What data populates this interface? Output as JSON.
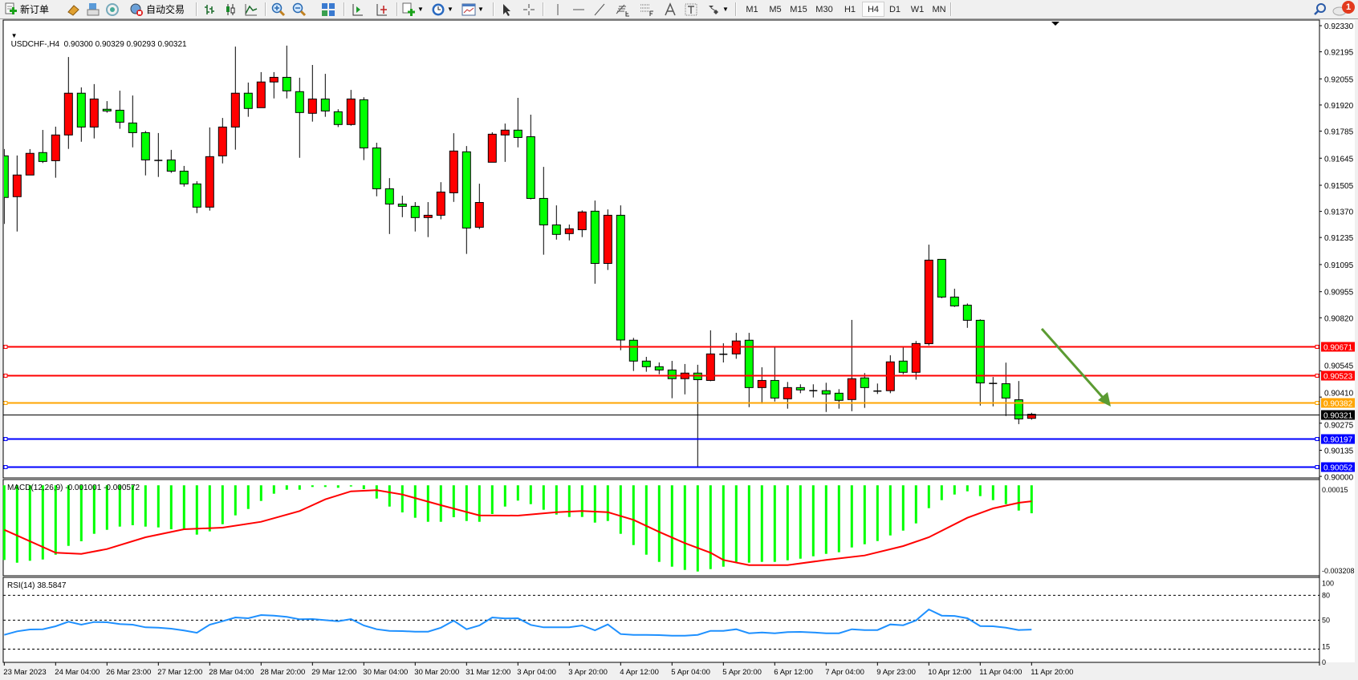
{
  "toolbar": {
    "new_order_label": "新订单",
    "auto_trade_label": "自动交易",
    "timeframes": [
      "M1",
      "M5",
      "M15",
      "M30",
      "H1",
      "H4",
      "D1",
      "W1",
      "MN"
    ],
    "active_timeframe": "H4",
    "notification_count": "1",
    "icons": [
      "new-order-icon",
      "gold-icon",
      "print-icon",
      "signal-icon",
      "auto-trade-icon",
      "bar-chart-icon",
      "candlestick-icon",
      "line-chart-icon",
      "zoom-in-icon",
      "zoom-out-icon",
      "tile-windows-icon",
      "chart-shift-icon",
      "auto-scroll-icon",
      "new-chart-icon",
      "periods-clock-icon",
      "templates-icon",
      "cursor-icon",
      "crosshair-icon",
      "vertical-line-icon",
      "horizontal-line-icon",
      "trendline-icon",
      "fibo-expansion-icon",
      "fibo-retracement-icon",
      "text-icon",
      "text-label-icon",
      "arrows-icon",
      "search-icon",
      "notification-icon"
    ]
  },
  "main_chart": {
    "header": "USDCHF-,H4  0.90300 0.90329 0.90293 0.90321",
    "symbol": "USDCHF-",
    "timeframe": "H4",
    "ohlc": {
      "open": "0.90300",
      "high": "0.90329",
      "low": "0.90293",
      "close": "0.90321"
    }
  },
  "macd_label": "MACD(12,26,9) -0.001001 -0.000572",
  "rsi_label": "RSI(14) 38.5847",
  "chart_data": [
    {
      "type": "candlestick",
      "title": "USDCHF-,H4",
      "ylim": [
        0.89992,
        0.92355
      ],
      "y_tick_labels": [
        "0.92330",
        "0.92195",
        "0.92055",
        "0.91920",
        "0.91785",
        "0.91645",
        "0.91505",
        "0.91370",
        "0.91235",
        "0.91095",
        "0.90955",
        "0.90820",
        "0.90545",
        "0.90410",
        "0.90275",
        "0.90135",
        "0.90000"
      ],
      "x_tick_labels": [
        "23 Mar 2023",
        "24 Mar 04:00",
        "26 Mar 23:00",
        "27 Mar 12:00",
        "28 Mar 04:00",
        "28 Mar 20:00",
        "29 Mar 12:00",
        "30 Mar 04:00",
        "30 Mar 20:00",
        "31 Mar 12:00",
        "3 Apr 04:00",
        "3 Apr 20:00",
        "4 Apr 12:00",
        "5 Apr 04:00",
        "5 Apr 20:00",
        "6 Apr 12:00",
        "7 Apr 04:00",
        "9 Apr 23:00",
        "10 Apr 12:00",
        "11 Apr 04:00",
        "11 Apr 20:00"
      ],
      "x_tick_every_bars": 4,
      "up_color": "#ff0000",
      "down_color": "#00ff00",
      "ohlc_fields": [
        "open",
        "high",
        "low",
        "close"
      ],
      "candles": [
        [
          0.91657,
          0.91692,
          0.91305,
          0.91442
        ],
        [
          0.91446,
          0.91659,
          0.91266,
          0.91558
        ],
        [
          0.91558,
          0.91692,
          0.91558,
          0.9167
        ],
        [
          0.91674,
          0.91791,
          0.9162,
          0.91628
        ],
        [
          0.91632,
          0.91808,
          0.91544,
          0.91765
        ],
        [
          0.91765,
          0.92168,
          0.91693,
          0.91981
        ],
        [
          0.91981,
          0.92011,
          0.9173,
          0.91806
        ],
        [
          0.91806,
          0.92028,
          0.91747,
          0.91951
        ],
        [
          0.91898,
          0.9194,
          0.9188,
          0.91889
        ],
        [
          0.91893,
          0.91994,
          0.91797,
          0.91831
        ],
        [
          0.91827,
          0.91969,
          0.91701,
          0.91777
        ],
        [
          0.91777,
          0.91786,
          0.91556,
          0.91636
        ],
        [
          0.91635,
          0.91775,
          0.91548,
          0.91632
        ],
        [
          0.91636,
          0.91688,
          0.91569,
          0.91578
        ],
        [
          0.91578,
          0.91605,
          0.91498,
          0.91512
        ],
        [
          0.91512,
          0.91526,
          0.91361,
          0.91392
        ],
        [
          0.91392,
          0.91804,
          0.91374,
          0.91653
        ],
        [
          0.91657,
          0.91853,
          0.91618,
          0.91806
        ],
        [
          0.91806,
          0.92222,
          0.91689,
          0.91981
        ],
        [
          0.91981,
          0.92036,
          0.91859,
          0.91902
        ],
        [
          0.91906,
          0.9209,
          0.91906,
          0.92039
        ],
        [
          0.92039,
          0.9209,
          0.91954,
          0.92063
        ],
        [
          0.92063,
          0.92227,
          0.91954,
          0.91993
        ],
        [
          0.91989,
          0.92061,
          0.91647,
          0.91881
        ],
        [
          0.91877,
          0.92127,
          0.91834,
          0.91951
        ],
        [
          0.91951,
          0.92081,
          0.91859,
          0.91889
        ],
        [
          0.91885,
          0.91898,
          0.91806,
          0.91819
        ],
        [
          0.91819,
          0.91998,
          0.91813,
          0.91951
        ],
        [
          0.91947,
          0.9196,
          0.91635,
          0.91698
        ],
        [
          0.91698,
          0.91725,
          0.91448,
          0.91487
        ],
        [
          0.91487,
          0.91542,
          0.91253,
          0.91408
        ],
        [
          0.91408,
          0.91451,
          0.9134,
          0.91396
        ],
        [
          0.91396,
          0.91418,
          0.91266,
          0.91338
        ],
        [
          0.91338,
          0.91418,
          0.91237,
          0.9135
        ],
        [
          0.9135,
          0.91521,
          0.91329,
          0.9147
        ],
        [
          0.91466,
          0.91774,
          0.91419,
          0.91682
        ],
        [
          0.91678,
          0.91708,
          0.9115,
          0.91284
        ],
        [
          0.91288,
          0.91513,
          0.91278,
          0.91416
        ],
        [
          0.91624,
          0.91779,
          0.91624,
          0.91769
        ],
        [
          0.91765,
          0.91824,
          0.91626,
          0.9179
        ],
        [
          0.9179,
          0.91957,
          0.91701,
          0.91752
        ],
        [
          0.91756,
          0.9187,
          0.91432,
          0.91437
        ],
        [
          0.91437,
          0.916,
          0.91146,
          0.913
        ],
        [
          0.913,
          0.91401,
          0.91224,
          0.91251
        ],
        [
          0.91255,
          0.91302,
          0.9122,
          0.9128
        ],
        [
          0.91275,
          0.91375,
          0.91237,
          0.91367
        ],
        [
          0.91371,
          0.91426,
          0.90996,
          0.91101
        ],
        [
          0.91101,
          0.9138,
          0.91067,
          0.9135
        ],
        [
          0.9135,
          0.91401,
          0.90652,
          0.90705
        ],
        [
          0.90704,
          0.90716,
          0.90545,
          0.90596
        ],
        [
          0.90596,
          0.90618,
          0.90541,
          0.90567
        ],
        [
          0.90567,
          0.90589,
          0.90528,
          0.9055
        ],
        [
          0.9055,
          0.90597,
          0.90404,
          0.90505
        ],
        [
          0.90505,
          0.90581,
          0.90424,
          0.90534
        ],
        [
          0.90534,
          0.90577,
          0.90048,
          0.905
        ],
        [
          0.90496,
          0.90755,
          0.90492,
          0.90633
        ],
        [
          0.90633,
          0.90688,
          0.90589,
          0.9063
        ],
        [
          0.90633,
          0.90742,
          0.90608,
          0.907
        ],
        [
          0.90704,
          0.90742,
          0.90358,
          0.90459
        ],
        [
          0.90459,
          0.90564,
          0.90375,
          0.90496
        ],
        [
          0.90496,
          0.90668,
          0.90387,
          0.90405
        ],
        [
          0.90401,
          0.90488,
          0.9035,
          0.90459
        ],
        [
          0.90459,
          0.90476,
          0.9043,
          0.90447
        ],
        [
          0.90443,
          0.90476,
          0.90408,
          0.90443
        ],
        [
          0.90443,
          0.90484,
          0.90333,
          0.90426
        ],
        [
          0.9043,
          0.90451,
          0.9035,
          0.90393
        ],
        [
          0.90397,
          0.90809,
          0.90337,
          0.90505
        ],
        [
          0.90509,
          0.90534,
          0.90354,
          0.90459
        ],
        [
          0.90441,
          0.9048,
          0.90426,
          0.90441
        ],
        [
          0.90443,
          0.90626,
          0.9043,
          0.90592
        ],
        [
          0.90596,
          0.90668,
          0.90528,
          0.90538
        ],
        [
          0.90538,
          0.907,
          0.905,
          0.90687
        ],
        [
          0.90686,
          0.91198,
          0.90677,
          0.91118
        ],
        [
          0.91122,
          0.91122,
          0.90921,
          0.90927
        ],
        [
          0.90927,
          0.9097,
          0.90876,
          0.90881
        ],
        [
          0.90885,
          0.90894,
          0.90768,
          0.90807
        ],
        [
          0.90807,
          0.90812,
          0.90366,
          0.90483
        ],
        [
          0.90481,
          0.90514,
          0.90362,
          0.9048
        ],
        [
          0.90479,
          0.90588,
          0.90312,
          0.90405
        ],
        [
          0.90396,
          0.90493,
          0.9027,
          0.90297
        ],
        [
          0.903,
          0.90329,
          0.90293,
          0.90321
        ]
      ],
      "horizontal_lines": [
        {
          "price": "0.90671",
          "color": "#ff0000"
        },
        {
          "price": "0.90523",
          "color": "#ff0000"
        },
        {
          "price": "0.90382",
          "color": "#ffa500"
        },
        {
          "price": "0.90197",
          "color": "#0000ff"
        },
        {
          "price": "0.90052",
          "color": "#0000ff"
        }
      ],
      "current_price": {
        "price": "0.90321",
        "color": "#000000"
      },
      "annotations": [
        {
          "type": "arrow",
          "color": "#5b9b32",
          "direction": "down-right"
        }
      ]
    },
    {
      "type": "bar+line",
      "name": "MACD(12,26,9)",
      "ylim": [
        -0.003237,
        0.000178
      ],
      "y_tick_labels": [
        "0.00015",
        "-0.003208"
      ],
      "histogram_color": "#00ff00",
      "signal_color": "#ff0000",
      "histogram": [
        -0.002672,
        -0.00277,
        -0.002701,
        -0.002655,
        -0.002483,
        -0.002167,
        -0.002003,
        -0.001736,
        -0.001593,
        -0.001478,
        -0.001429,
        -0.001478,
        -0.001507,
        -0.001573,
        -0.001573,
        -0.001765,
        -0.00165,
        -0.001392,
        -0.001076,
        -0.000847,
        -0.00056,
        -0.000301,
        -0.000158,
        -0.000158,
        -6e-05,
        -6e-05,
        -8.9e-05,
        -4.3e-05,
        -0.000138,
        -0.000474,
        -0.000761,
        -0.00097,
        -0.001162,
        -0.001306,
        -0.001306,
        -0.001142,
        -0.001277,
        -0.001306,
        -0.001027,
        -0.000761,
        -0.000548,
        -0.000674,
        -0.000875,
        -0.001048,
        -0.001134,
        -0.001134,
        -0.001335,
        -0.001277,
        -0.001736,
        -0.002138,
        -0.002483,
        -0.002741,
        -0.002913,
        -0.003028,
        -0.003085,
        -0.002999,
        -0.002913,
        -0.002741,
        -0.00277,
        -0.002741,
        -0.002741,
        -0.002683,
        -0.002626,
        -0.00254,
        -0.002454,
        -0.002396,
        -0.002224,
        -0.002109,
        -0.001995,
        -0.001794,
        -0.001622,
        -0.001363,
        -0.000818,
        -0.000531,
        -0.00033,
        -0.000215,
        -0.000387,
        -0.000531,
        -0.000674,
        -0.000904,
        -0.001001
      ],
      "signal_points": [
        [
          1,
          -0.001593
        ],
        [
          5,
          -0.002414
        ],
        [
          7,
          -0.002454
        ],
        [
          9,
          -0.002282
        ],
        [
          12,
          -0.00186
        ],
        [
          15,
          -0.001573
        ],
        [
          18,
          -0.001515
        ],
        [
          21,
          -0.001306
        ],
        [
          24,
          -0.000921
        ],
        [
          26,
          -0.000502
        ],
        [
          28,
          -0.000215
        ],
        [
          30,
          -0.000175
        ],
        [
          32,
          -0.00033
        ],
        [
          35,
          -0.000712
        ],
        [
          38,
          -0.001076
        ],
        [
          41,
          -0.001085
        ],
        [
          44,
          -0.000961
        ],
        [
          46,
          -0.000921
        ],
        [
          48,
          -0.000961
        ],
        [
          50,
          -0.001237
        ],
        [
          52,
          -0.001667
        ],
        [
          54,
          -0.002069
        ],
        [
          56,
          -0.002414
        ],
        [
          57,
          -0.002672
        ],
        [
          59,
          -0.002856
        ],
        [
          62,
          -0.002856
        ],
        [
          65,
          -0.002672
        ],
        [
          68,
          -0.002511
        ],
        [
          71,
          -0.002175
        ],
        [
          73,
          -0.00186
        ],
        [
          76,
          -0.001162
        ],
        [
          78,
          -0.000827
        ],
        [
          80,
          -0.000626
        ],
        [
          81,
          -0.000572
        ]
      ]
    },
    {
      "type": "line",
      "name": "RSI(14)",
      "ylim": [
        0,
        100
      ],
      "levels": [
        80,
        50,
        15
      ],
      "y_tick_labels": [
        "100",
        "80",
        "50",
        "15",
        "0"
      ],
      "color": "#1e90ff",
      "values": [
        32.2,
        36.5,
        38.7,
        39.0,
        42.6,
        48.1,
        44.5,
        47.7,
        47.4,
        45.2,
        44.5,
        41.3,
        40.9,
        39.7,
        37.5,
        34.8,
        44.5,
        48.7,
        53.2,
        52.3,
        56.1,
        55.5,
        53.9,
        51.0,
        51.3,
        50.0,
        48.7,
        51.3,
        43.6,
        39.0,
        37.1,
        36.8,
        36.1,
        36.1,
        40.9,
        49.4,
        39.0,
        43.6,
        53.2,
        52.0,
        52.3,
        44.2,
        41.3,
        41.3,
        41.3,
        43.6,
        37.8,
        44.8,
        33.2,
        32.2,
        32.2,
        31.9,
        31.3,
        31.3,
        32.2,
        37.1,
        37.1,
        39.0,
        34.2,
        35.1,
        34.2,
        35.5,
        35.8,
        35.1,
        34.2,
        34.2,
        39.0,
        38.0,
        38.0,
        44.8,
        43.9,
        49.7,
        62.9,
        55.5,
        55.1,
        52.3,
        42.9,
        42.6,
        40.9,
        38.0,
        38.5847
      ]
    }
  ]
}
